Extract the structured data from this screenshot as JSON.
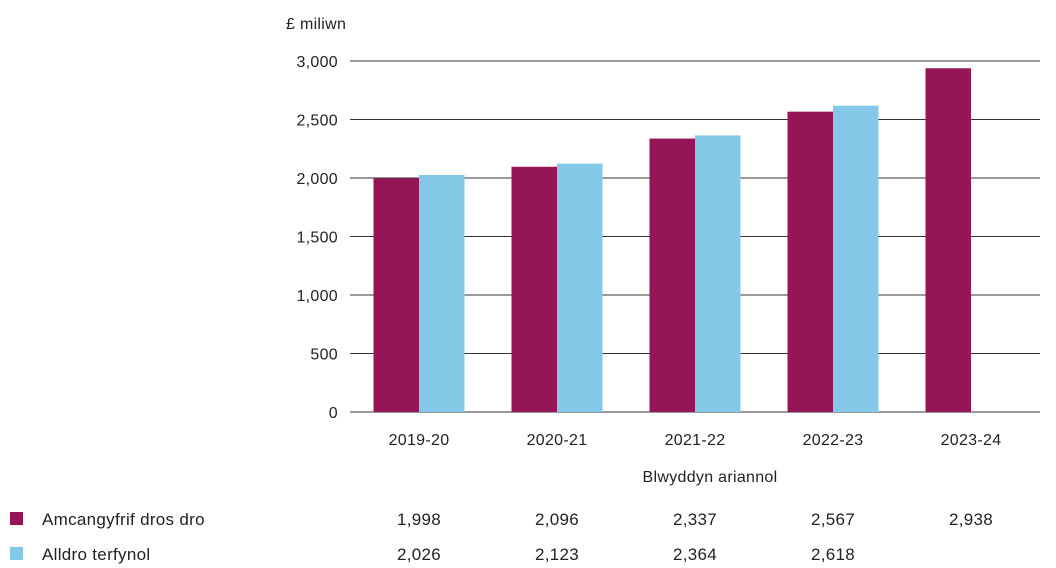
{
  "chart_data": {
    "type": "bar",
    "ylabel": "£ miliwn",
    "xlabel": "Blwyddyn ariannol",
    "ylim": [
      0,
      3000
    ],
    "yticks": [
      0,
      500,
      1000,
      1500,
      2000,
      2500,
      3000
    ],
    "ytick_labels": [
      "0",
      "500",
      "1,000",
      "1,500",
      "2,000",
      "2,500",
      "3,000"
    ],
    "categories": [
      "2019-20",
      "2020-21",
      "2021-22",
      "2022-23",
      "2023-24"
    ],
    "grid": true,
    "legend_placement": "bottom-left, as data table",
    "series": [
      {
        "name": "Amcangyfrif dros dro",
        "color": "#951556",
        "values": [
          1998,
          2096,
          2337,
          2567,
          2938
        ],
        "labels": [
          "1,998",
          "2,096",
          "2,337",
          "2,567",
          "2,938"
        ]
      },
      {
        "name": "Alldro terfynol",
        "color": "#83c8e6",
        "values": [
          2026,
          2123,
          2364,
          2618,
          null
        ],
        "labels": [
          "2,026",
          "2,123",
          "2,364",
          "2,618",
          ""
        ]
      }
    ]
  }
}
